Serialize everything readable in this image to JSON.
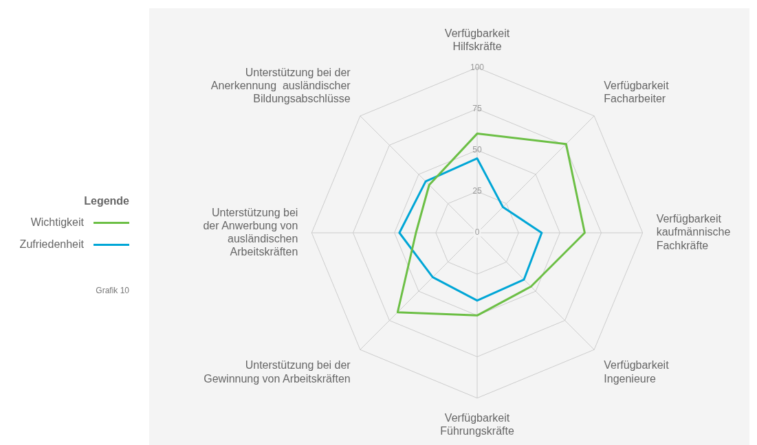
{
  "chart_data": {
    "type": "radar",
    "categories": [
      "Verfügbarkeit\nHilfskräfte",
      "Verfügbarkeit\nFacharbeiter",
      "Verfügbarkeit\nkaufmännische\nFachkräfte",
      "Verfügbarkeit\nIngenieure",
      "Verfügbarkeit\nFührungskräfte",
      "Unterstützung bei der\nGewinnung von Arbeitskräften",
      "Unterstützung bei\nder Anwerbung von\nausländischen\nArbeitskräften",
      "Unterstützung bei der\nAnerkennung  ausländischer\nBildungsabschlüsse"
    ],
    "series": [
      {
        "name": "Wichtigkeit",
        "color": "#6cbf45",
        "values": [
          60,
          76,
          65,
          46,
          50,
          68,
          37,
          41
        ]
      },
      {
        "name": "Zufriedenheit",
        "color": "#00a6d6",
        "values": [
          45,
          22,
          39,
          40,
          41,
          38,
          47,
          44
        ]
      }
    ],
    "ylim": [
      0,
      100
    ],
    "yticks": [
      0,
      25,
      50,
      75,
      100
    ],
    "grid": true,
    "legend": "left",
    "legend_title": "Legende",
    "marker": "none",
    "line_style": "solid",
    "annotations": [
      "Grafik 10"
    ]
  }
}
